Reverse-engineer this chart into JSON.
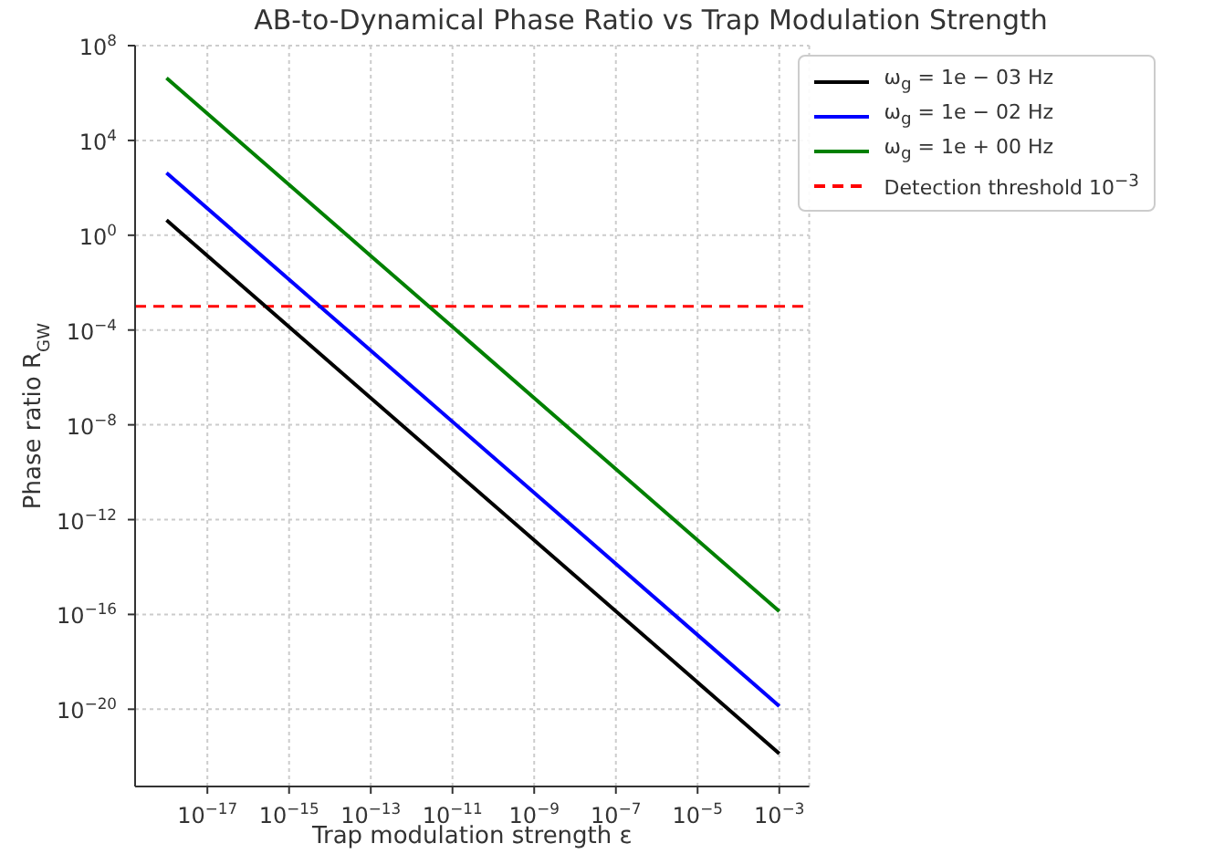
{
  "chart_data": {
    "type": "line",
    "title": "AB-to-Dynamical Phase Ratio vs Trap Modulation Strength",
    "xlabel": "Trap modulation strength ε",
    "ylabel": "Phase ratio R$_{GW}$",
    "x": [
      1e-18,
      1e-13,
      1e-08,
      0.001
    ],
    "series": [
      {
        "name": "ω$_{g}$ = 1e − 03 Hz",
        "color": "#000000",
        "values": [
          4.3,
          1.35e-07,
          4.3e-15,
          1.35e-22
        ]
      },
      {
        "name": "ω$_{g}$ = 1e − 02 Hz",
        "color": "#0000ff",
        "values": [
          427,
          1.35e-05,
          4.3e-13,
          1.35e-20
        ]
      },
      {
        "name": "ω$_{g}$ = 1e + 00 Hz",
        "color": "#008000",
        "values": [
          4300000.0,
          0.135,
          4.3e-09,
          1.35e-16
        ]
      }
    ],
    "ref_lines": [
      {
        "axis": "y",
        "value": 0.001,
        "label": "Detection threshold 10$^{−3}$",
        "color": "#ff0000",
        "line_style": "dashed"
      }
    ],
    "log": "xy",
    "xlim": [
      1.7e-19,
      0.0054
    ],
    "ylim": [
      5.5e-24,
      100000000.0
    ],
    "xticks": [
      {
        "value": 1e-17,
        "label": "10$^{−17}$"
      },
      {
        "value": 1e-15,
        "label": "10$^{−15}$"
      },
      {
        "value": 1e-13,
        "label": "10$^{−13}$"
      },
      {
        "value": 1e-11,
        "label": "10$^{−11}$"
      },
      {
        "value": 1e-09,
        "label": "10$^{−9}$"
      },
      {
        "value": 1e-07,
        "label": "10$^{−7}$"
      },
      {
        "value": 1e-05,
        "label": "10$^{−5}$"
      },
      {
        "value": 0.001,
        "label": "10$^{−3}$"
      }
    ],
    "yticks": [
      {
        "value": 1e-20,
        "label": "10$^{−20}$"
      },
      {
        "value": 1e-16,
        "label": "10$^{−16}$"
      },
      {
        "value": 1e-12,
        "label": "10$^{−12}$"
      },
      {
        "value": 1e-08,
        "label": "10$^{−8}$"
      },
      {
        "value": 0.0001,
        "label": "10$^{−4}$"
      },
      {
        "value": 1,
        "label": "10$^{0}$"
      },
      {
        "value": 10000.0,
        "label": "10$^{4}$"
      },
      {
        "value": 100000000.0,
        "label": "10$^{8}$"
      }
    ],
    "grid": true,
    "legend": "top right",
    "marker": "none",
    "line_style": "solid"
  }
}
